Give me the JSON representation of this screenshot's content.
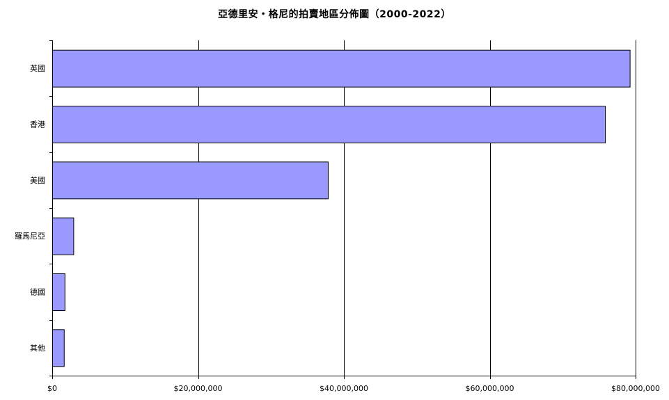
{
  "chart_data": {
    "type": "bar",
    "orientation": "horizontal",
    "title": "亞德里安・格尼的拍賣地區分佈圖（2000-2022）",
    "xlabel": "",
    "ylabel": "",
    "categories": [
      "英國",
      "香港",
      "美國",
      "羅馬尼亞",
      "德國",
      "其他"
    ],
    "values": [
      79200000,
      75800000,
      37800000,
      2900000,
      1700000,
      1600000
    ],
    "xlim": [
      0,
      80000000
    ],
    "x_ticks": [
      0,
      20000000,
      40000000,
      60000000,
      80000000
    ],
    "x_tick_labels": [
      "$0",
      "$20,000,000",
      "$40,000,000",
      "$60,000,000",
      "$80,000,000"
    ],
    "bar_color": "#9999ff",
    "bar_edge_color": "#000000",
    "grid": "vertical",
    "legend": "none"
  }
}
